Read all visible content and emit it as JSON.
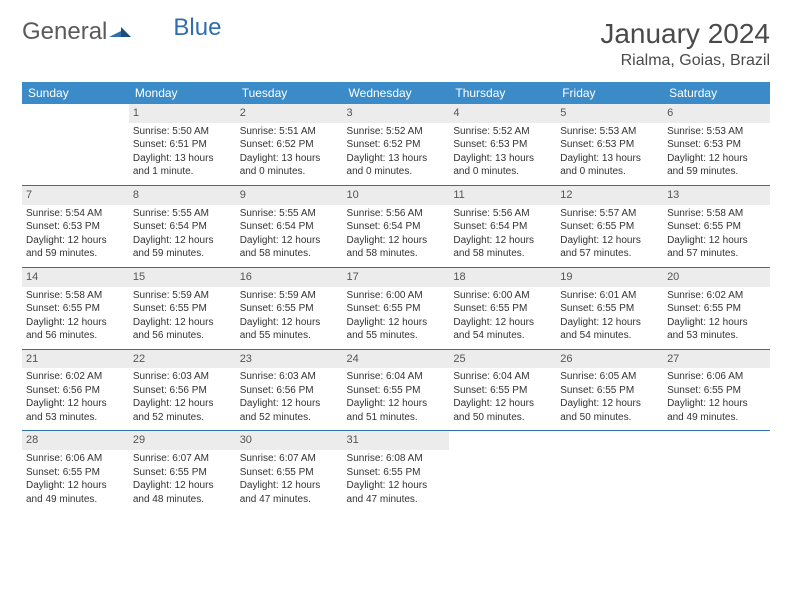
{
  "logo": {
    "text1": "General",
    "text2": "Blue"
  },
  "title": "January 2024",
  "location": "Rialma, Goias, Brazil",
  "colors": {
    "header_bg": "#3b8bc9",
    "header_fg": "#ffffff",
    "daynum_bg": "#ececec",
    "rule": "#2f6fae",
    "logo_gray": "#5a5a5a",
    "logo_blue": "#2f6fae"
  },
  "weekdays": [
    "Sunday",
    "Monday",
    "Tuesday",
    "Wednesday",
    "Thursday",
    "Friday",
    "Saturday"
  ],
  "weeks": [
    [
      {
        "n": "",
        "sr": "",
        "ss": "",
        "dl": ""
      },
      {
        "n": "1",
        "sr": "Sunrise: 5:50 AM",
        "ss": "Sunset: 6:51 PM",
        "dl": "Daylight: 13 hours and 1 minute."
      },
      {
        "n": "2",
        "sr": "Sunrise: 5:51 AM",
        "ss": "Sunset: 6:52 PM",
        "dl": "Daylight: 13 hours and 0 minutes."
      },
      {
        "n": "3",
        "sr": "Sunrise: 5:52 AM",
        "ss": "Sunset: 6:52 PM",
        "dl": "Daylight: 13 hours and 0 minutes."
      },
      {
        "n": "4",
        "sr": "Sunrise: 5:52 AM",
        "ss": "Sunset: 6:53 PM",
        "dl": "Daylight: 13 hours and 0 minutes."
      },
      {
        "n": "5",
        "sr": "Sunrise: 5:53 AM",
        "ss": "Sunset: 6:53 PM",
        "dl": "Daylight: 13 hours and 0 minutes."
      },
      {
        "n": "6",
        "sr": "Sunrise: 5:53 AM",
        "ss": "Sunset: 6:53 PM",
        "dl": "Daylight: 12 hours and 59 minutes."
      }
    ],
    [
      {
        "n": "7",
        "sr": "Sunrise: 5:54 AM",
        "ss": "Sunset: 6:53 PM",
        "dl": "Daylight: 12 hours and 59 minutes."
      },
      {
        "n": "8",
        "sr": "Sunrise: 5:55 AM",
        "ss": "Sunset: 6:54 PM",
        "dl": "Daylight: 12 hours and 59 minutes."
      },
      {
        "n": "9",
        "sr": "Sunrise: 5:55 AM",
        "ss": "Sunset: 6:54 PM",
        "dl": "Daylight: 12 hours and 58 minutes."
      },
      {
        "n": "10",
        "sr": "Sunrise: 5:56 AM",
        "ss": "Sunset: 6:54 PM",
        "dl": "Daylight: 12 hours and 58 minutes."
      },
      {
        "n": "11",
        "sr": "Sunrise: 5:56 AM",
        "ss": "Sunset: 6:54 PM",
        "dl": "Daylight: 12 hours and 58 minutes."
      },
      {
        "n": "12",
        "sr": "Sunrise: 5:57 AM",
        "ss": "Sunset: 6:55 PM",
        "dl": "Daylight: 12 hours and 57 minutes."
      },
      {
        "n": "13",
        "sr": "Sunrise: 5:58 AM",
        "ss": "Sunset: 6:55 PM",
        "dl": "Daylight: 12 hours and 57 minutes."
      }
    ],
    [
      {
        "n": "14",
        "sr": "Sunrise: 5:58 AM",
        "ss": "Sunset: 6:55 PM",
        "dl": "Daylight: 12 hours and 56 minutes."
      },
      {
        "n": "15",
        "sr": "Sunrise: 5:59 AM",
        "ss": "Sunset: 6:55 PM",
        "dl": "Daylight: 12 hours and 56 minutes."
      },
      {
        "n": "16",
        "sr": "Sunrise: 5:59 AM",
        "ss": "Sunset: 6:55 PM",
        "dl": "Daylight: 12 hours and 55 minutes."
      },
      {
        "n": "17",
        "sr": "Sunrise: 6:00 AM",
        "ss": "Sunset: 6:55 PM",
        "dl": "Daylight: 12 hours and 55 minutes."
      },
      {
        "n": "18",
        "sr": "Sunrise: 6:00 AM",
        "ss": "Sunset: 6:55 PM",
        "dl": "Daylight: 12 hours and 54 minutes."
      },
      {
        "n": "19",
        "sr": "Sunrise: 6:01 AM",
        "ss": "Sunset: 6:55 PM",
        "dl": "Daylight: 12 hours and 54 minutes."
      },
      {
        "n": "20",
        "sr": "Sunrise: 6:02 AM",
        "ss": "Sunset: 6:55 PM",
        "dl": "Daylight: 12 hours and 53 minutes."
      }
    ],
    [
      {
        "n": "21",
        "sr": "Sunrise: 6:02 AM",
        "ss": "Sunset: 6:56 PM",
        "dl": "Daylight: 12 hours and 53 minutes."
      },
      {
        "n": "22",
        "sr": "Sunrise: 6:03 AM",
        "ss": "Sunset: 6:56 PM",
        "dl": "Daylight: 12 hours and 52 minutes."
      },
      {
        "n": "23",
        "sr": "Sunrise: 6:03 AM",
        "ss": "Sunset: 6:56 PM",
        "dl": "Daylight: 12 hours and 52 minutes."
      },
      {
        "n": "24",
        "sr": "Sunrise: 6:04 AM",
        "ss": "Sunset: 6:55 PM",
        "dl": "Daylight: 12 hours and 51 minutes."
      },
      {
        "n": "25",
        "sr": "Sunrise: 6:04 AM",
        "ss": "Sunset: 6:55 PM",
        "dl": "Daylight: 12 hours and 50 minutes."
      },
      {
        "n": "26",
        "sr": "Sunrise: 6:05 AM",
        "ss": "Sunset: 6:55 PM",
        "dl": "Daylight: 12 hours and 50 minutes."
      },
      {
        "n": "27",
        "sr": "Sunrise: 6:06 AM",
        "ss": "Sunset: 6:55 PM",
        "dl": "Daylight: 12 hours and 49 minutes."
      }
    ],
    [
      {
        "n": "28",
        "sr": "Sunrise: 6:06 AM",
        "ss": "Sunset: 6:55 PM",
        "dl": "Daylight: 12 hours and 49 minutes."
      },
      {
        "n": "29",
        "sr": "Sunrise: 6:07 AM",
        "ss": "Sunset: 6:55 PM",
        "dl": "Daylight: 12 hours and 48 minutes."
      },
      {
        "n": "30",
        "sr": "Sunrise: 6:07 AM",
        "ss": "Sunset: 6:55 PM",
        "dl": "Daylight: 12 hours and 47 minutes."
      },
      {
        "n": "31",
        "sr": "Sunrise: 6:08 AM",
        "ss": "Sunset: 6:55 PM",
        "dl": "Daylight: 12 hours and 47 minutes."
      },
      {
        "n": "",
        "sr": "",
        "ss": "",
        "dl": ""
      },
      {
        "n": "",
        "sr": "",
        "ss": "",
        "dl": ""
      },
      {
        "n": "",
        "sr": "",
        "ss": "",
        "dl": ""
      }
    ]
  ]
}
